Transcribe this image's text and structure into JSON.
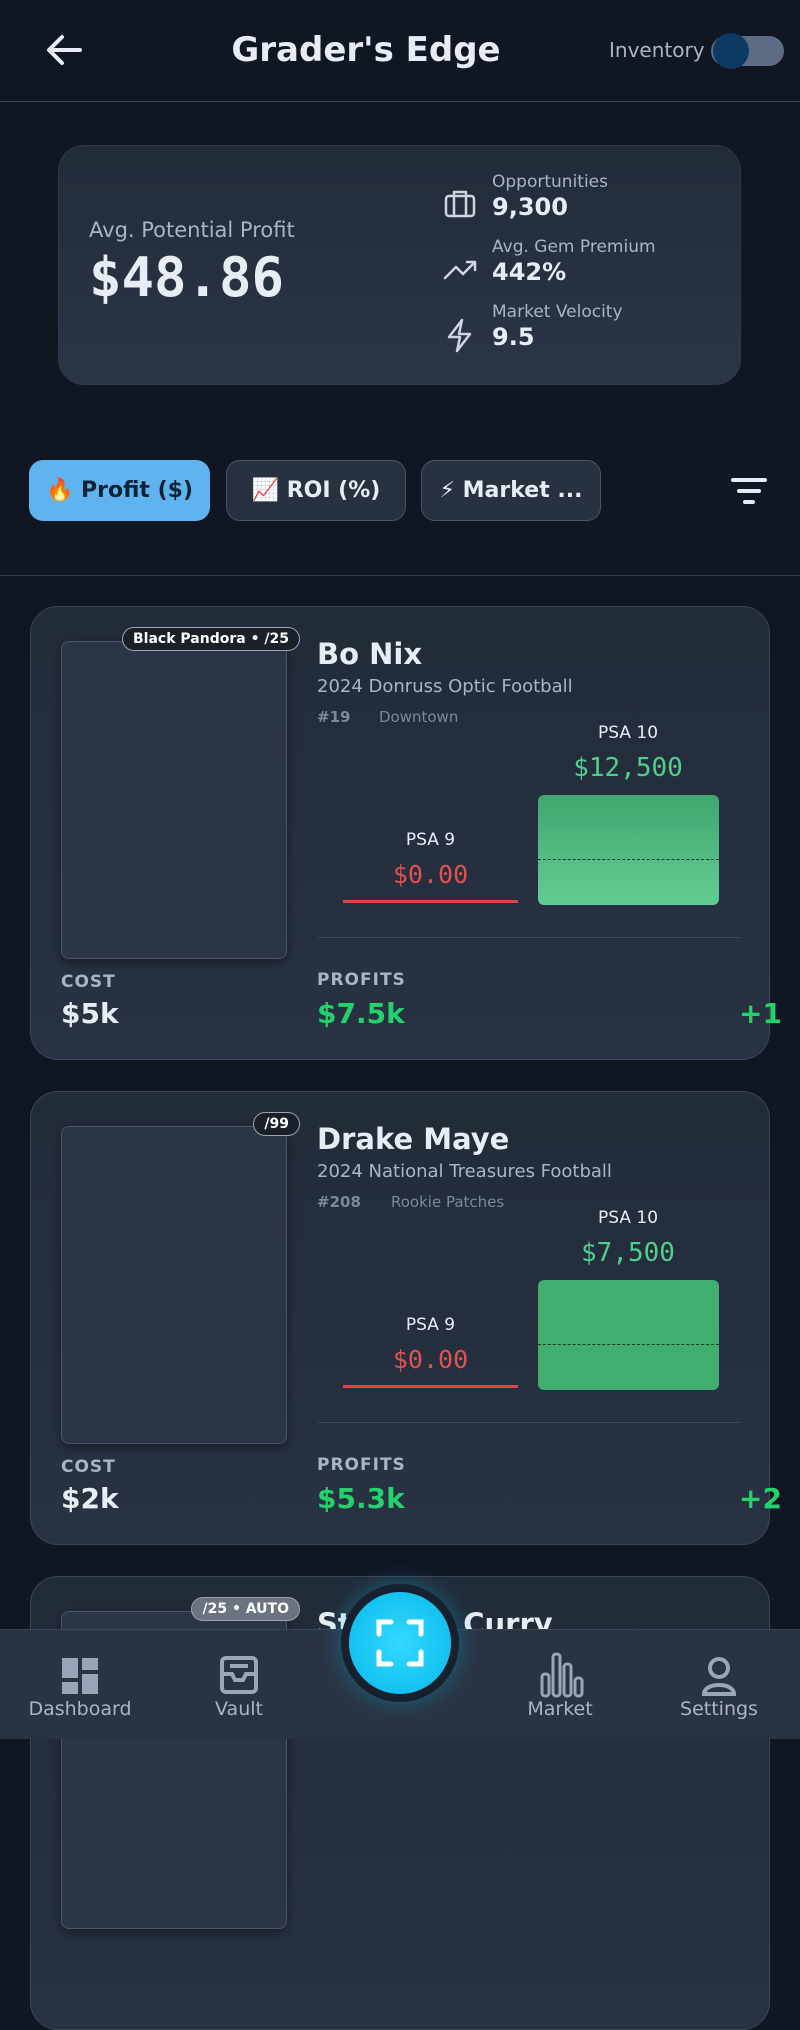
{
  "header": {
    "title": "Grader's Edge",
    "toggle_label": "Inventory"
  },
  "summary": {
    "label": "Avg. Potential Profit",
    "value": "$48.86",
    "stats": [
      {
        "label": "Opportunities",
        "value": "9,300"
      },
      {
        "label": "Avg. Gem Premium",
        "value": "442%"
      },
      {
        "label": "Market Velocity",
        "value": "9.5"
      }
    ]
  },
  "tabs": [
    "🔥 Profit ($)",
    "📈 ROI (%)",
    "⚡ Market ..."
  ],
  "cards": [
    {
      "badge": "Black Pandora • /25",
      "name": "Bo Nix",
      "set": "2024 Donruss Optic Football",
      "number": "#19",
      "variant": "Downtown",
      "psa10_label": "PSA 10",
      "psa10_value": "$12,500",
      "psa9_label": "PSA 9",
      "psa9_value": "$0.00",
      "cost_label": "COST",
      "cost": "$5k",
      "profits_label": "PROFITS",
      "profits": "$7.5k",
      "extra": "+1"
    },
    {
      "badge": "/99",
      "name": "Drake Maye",
      "set": "2024 National Treasures Football",
      "number": "#208",
      "variant": "Rookie Patches",
      "psa10_label": "PSA 10",
      "psa10_value": "$7,500",
      "psa9_label": "PSA 9",
      "psa9_value": "$0.00",
      "cost_label": "COST",
      "cost": "$2k",
      "profits_label": "PROFITS",
      "profits": "$5.3k",
      "extra": "+2"
    },
    {
      "badge": "/25 • AUTO",
      "name": "Stephen Curry"
    }
  ],
  "nav": [
    "Dashboard",
    "Vault",
    "Market",
    "Settings"
  ]
}
